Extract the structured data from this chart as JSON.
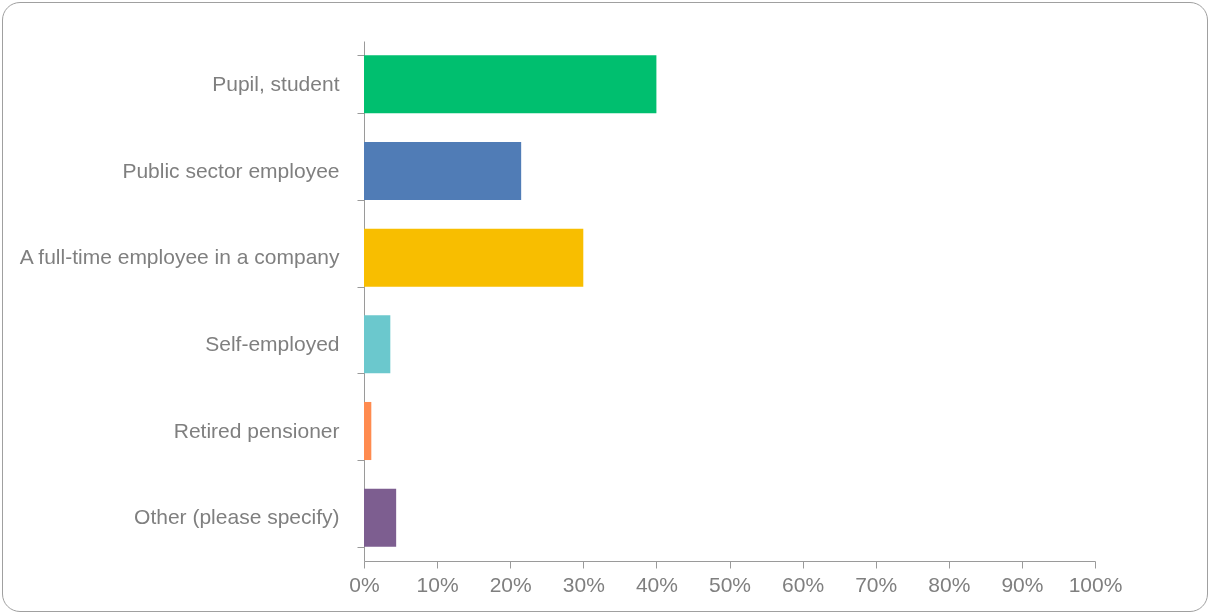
{
  "chart_data": {
    "type": "bar",
    "orientation": "horizontal",
    "categories": [
      "Pupil, student",
      "Public sector employee",
      "A full-time employee in a company",
      "Self-employed",
      "Retired pensioner",
      "Other (please specify)"
    ],
    "values": [
      40,
      21.5,
      30,
      3.6,
      1,
      4.4
    ],
    "colors": [
      "#00bf6f",
      "#507cb6",
      "#f8be00",
      "#6bc8cd",
      "#ff8b4f",
      "#7d5e90"
    ],
    "xlim": [
      0,
      100
    ],
    "xticks": [
      {
        "value": 0,
        "label": "0%"
      },
      {
        "value": 10,
        "label": "10%"
      },
      {
        "value": 20,
        "label": "20%"
      },
      {
        "value": 30,
        "label": "30%"
      },
      {
        "value": 40,
        "label": "40%"
      },
      {
        "value": 50,
        "label": "50%"
      },
      {
        "value": 60,
        "label": "60%"
      },
      {
        "value": 70,
        "label": "70%"
      },
      {
        "value": 80,
        "label": "80%"
      },
      {
        "value": 90,
        "label": "90%"
      },
      {
        "value": 100,
        "label": "100%"
      }
    ],
    "grid": false,
    "legend": false
  }
}
